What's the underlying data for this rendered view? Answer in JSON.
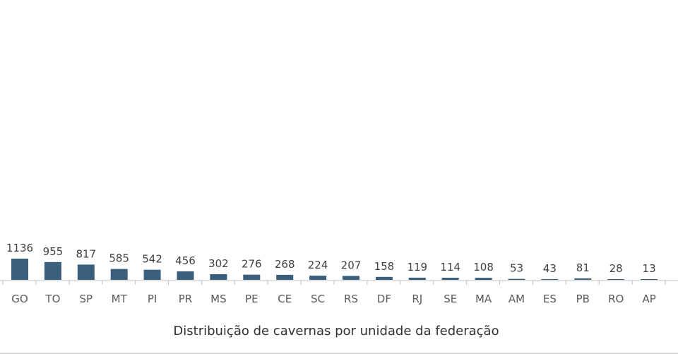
{
  "chart_data": {
    "type": "bar",
    "categories": [
      "GO",
      "TO",
      "SP",
      "MT",
      "PI",
      "PR",
      "MS",
      "PE",
      "CE",
      "SC",
      "RS",
      "DF",
      "RJ",
      "SE",
      "MA",
      "AM",
      "ES",
      "PB",
      "RO",
      "AP"
    ],
    "values": [
      1136,
      955,
      817,
      585,
      542,
      456,
      302,
      276,
      268,
      224,
      207,
      158,
      119,
      114,
      108,
      53,
      43,
      81,
      28,
      13
    ],
    "caption": "Distribuição de cavernas por unidade da federação",
    "colors": {
      "bar": "#3a5f7d",
      "axis": "#bfbfbf",
      "frame_bottom": "#d9d9d9"
    }
  }
}
